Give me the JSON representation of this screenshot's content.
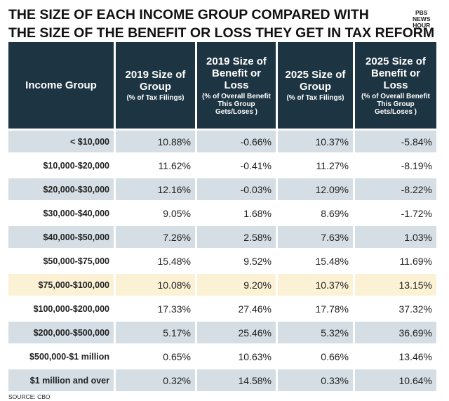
{
  "header": {
    "title_lines": [
      "THE SIZE OF EACH INCOME GROUP COMPARED WITH",
      "THE SIZE OF THE BENEFIT OR LOSS THEY GET IN TAX REFORM"
    ],
    "logo": [
      "PBS",
      "NEWS",
      "HOUR"
    ]
  },
  "table": {
    "columns": [
      {
        "main": "Income Group"
      },
      {
        "main": "2019 Size of Group",
        "sub": "(% of Tax Filings)"
      },
      {
        "main": "2019 Size of Benefit or Loss",
        "sub": "(% of Overall Benefit This Group Gets/Loses )"
      },
      {
        "main": "2025 Size of Group",
        "sub": "(% of Tax Filings)"
      },
      {
        "main": "2025 Size of Benefit or Loss",
        "sub": "(% of Overall Benefit This Group Gets/Loses )"
      }
    ],
    "rows": [
      [
        "< $10,000",
        "10.88%",
        "-0.66%",
        "10.37%",
        "-5.84%"
      ],
      [
        "$10,000-$20,000",
        "11.62%",
        "-0.41%",
        "11.27%",
        "-8.19%"
      ],
      [
        "$20,000-$30,000",
        "12.16%",
        "-0.03%",
        "12.09%",
        "-8.22%"
      ],
      [
        "$30,000-$40,000",
        "9.05%",
        "1.68%",
        "8.69%",
        "-1.72%"
      ],
      [
        "$40,000-$50,000",
        "7.26%",
        "2.58%",
        "7.63%",
        "1.03%"
      ],
      [
        "$50,000-$75,000",
        "15.48%",
        "9.52%",
        "15.48%",
        "11.69%"
      ],
      [
        "$75,000-$100,000",
        "10.08%",
        "9.20%",
        "10.37%",
        "13.15%"
      ],
      [
        "$100,000-$200,000",
        "17.33%",
        "27.46%",
        "17.78%",
        "37.32%"
      ],
      [
        "$200,000-$500,000",
        "5.17%",
        "25.46%",
        "5.32%",
        "36.69%"
      ],
      [
        "$500,000-$1 million",
        "0.65%",
        "10.63%",
        "0.66%",
        "13.46%"
      ],
      [
        "$1 million and over",
        "0.32%",
        "14.58%",
        "0.33%",
        "10.64%"
      ]
    ]
  },
  "source": "SOURCE: CBO"
}
